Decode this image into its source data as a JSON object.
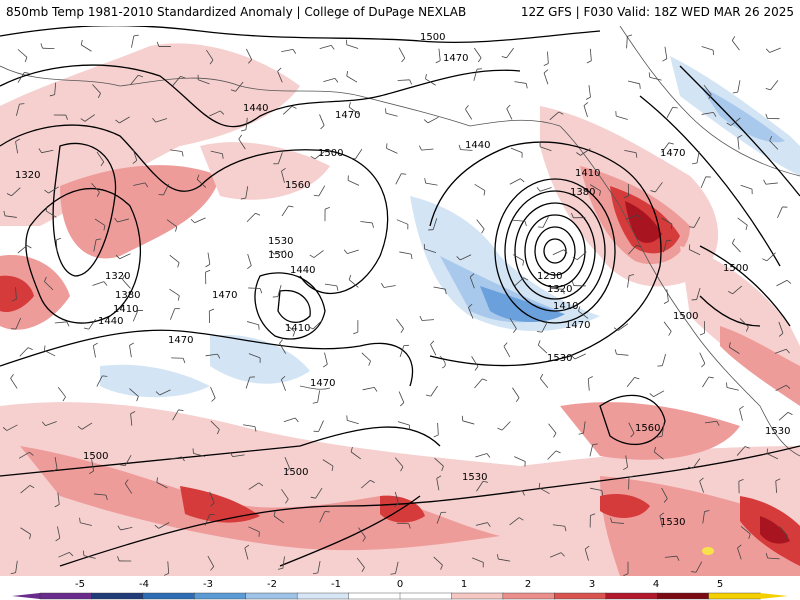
{
  "header": {
    "title_left": "850mb Temp 1981-2010 Standardized Anomaly | College of DuPage NEXLAB",
    "title_right": "12Z GFS | F030 Valid: 18Z WED MAR 26 2025"
  },
  "contour_labels": [
    "1500",
    "1470",
    "1440",
    "1470",
    "1320",
    "1560",
    "1500",
    "1530",
    "1500",
    "1440",
    "1410",
    "1380",
    "1440",
    "1410",
    "1320",
    "1380",
    "1470",
    "1470",
    "1470",
    "1470",
    "1230",
    "1320",
    "1410",
    "1470",
    "1530",
    "1500",
    "1500",
    "1560",
    "1500",
    "1530",
    "1530",
    "1530",
    "1440",
    "1410",
    "1500"
  ],
  "colorbar": {
    "ticks": [
      "-5",
      "-4",
      "-3",
      "-2",
      "-1",
      "0",
      "1",
      "2",
      "3",
      "4",
      "5"
    ],
    "colors": [
      "#6a2c8c",
      "#1f3b78",
      "#2e6db4",
      "#5b9bd5",
      "#9ec3e6",
      "#d6e6f4",
      "#ffffff",
      "#ffffff",
      "#f4c7c3",
      "#ea8f8c",
      "#d9534f",
      "#b2182b",
      "#7a0a14",
      "#f5d000"
    ]
  },
  "anomaly_colors": {
    "light_red": "#f6cfcf",
    "mid_red": "#ee9c9a",
    "red": "#d63b3b",
    "dark_red": "#a8141f",
    "light_blue": "#d3e4f5",
    "mid_blue": "#a8c8ec",
    "blue": "#6aa0dc",
    "yellow": "#f7e24a"
  }
}
